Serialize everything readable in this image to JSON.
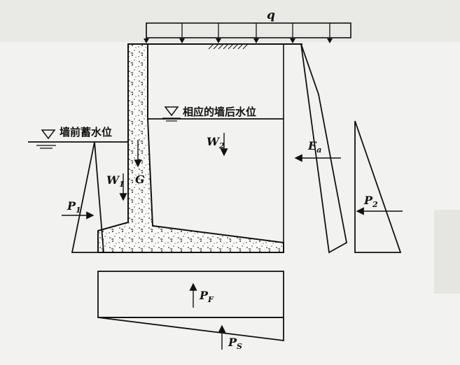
{
  "labels": {
    "q": "q",
    "water_front": "墙前蓄水位",
    "water_back": "相应的墙后水位",
    "W2_main": "W",
    "W2_sub": "2",
    "Ea_main": "E",
    "Ea_sub": "a",
    "W1_main": "W",
    "W1_sub": "1",
    "G": "G",
    "P1_main": "P",
    "P1_sub": "1",
    "P2_main": "P",
    "P2_sub": "2",
    "PF_main": "P",
    "PF_sub": "F",
    "PS_main": "P",
    "PS_sub": "S"
  },
  "symbols": {
    "water_level_front": "water-level-triangle",
    "water_level_back": "water-level-triangle",
    "ground_hatch": "ground-hatch"
  }
}
